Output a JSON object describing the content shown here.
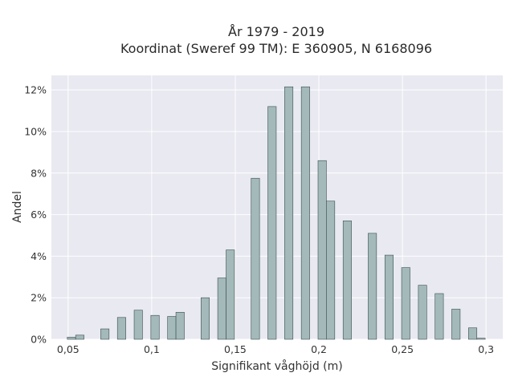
{
  "chart_data": {
    "type": "bar",
    "title_line1": "År 1979 - 2019",
    "title_line2": "Koordinat (Sweref 99 TM): E 360905, N 6168096",
    "xlabel": "Signifikant våghöjd (m)",
    "ylabel": "Andel",
    "xlim": [
      0.04,
      0.31
    ],
    "ylim": [
      0,
      12.7
    ],
    "x_ticks": [
      {
        "value": 0.05,
        "label": "0,05"
      },
      {
        "value": 0.1,
        "label": "0,1"
      },
      {
        "value": 0.15,
        "label": "0,15"
      },
      {
        "value": 0.2,
        "label": "0,2"
      },
      {
        "value": 0.25,
        "label": "0,25"
      },
      {
        "value": 0.3,
        "label": "0,3"
      }
    ],
    "y_ticks": [
      {
        "value": 0,
        "label": "0%"
      },
      {
        "value": 2,
        "label": "2%"
      },
      {
        "value": 4,
        "label": "4%"
      },
      {
        "value": 6,
        "label": "6%"
      },
      {
        "value": 8,
        "label": "8%"
      },
      {
        "value": 10,
        "label": "10%"
      },
      {
        "value": 12,
        "label": "12%"
      }
    ],
    "bar_width": 0.005,
    "bars": [
      {
        "x": 0.052,
        "y": 0.1
      },
      {
        "x": 0.057,
        "y": 0.2
      },
      {
        "x": 0.072,
        "y": 0.5
      },
      {
        "x": 0.082,
        "y": 1.05
      },
      {
        "x": 0.092,
        "y": 1.4
      },
      {
        "x": 0.102,
        "y": 1.15
      },
      {
        "x": 0.112,
        "y": 1.1
      },
      {
        "x": 0.117,
        "y": 1.3
      },
      {
        "x": 0.132,
        "y": 2.0
      },
      {
        "x": 0.142,
        "y": 2.95
      },
      {
        "x": 0.147,
        "y": 4.3
      },
      {
        "x": 0.162,
        "y": 7.75
      },
      {
        "x": 0.172,
        "y": 11.2
      },
      {
        "x": 0.182,
        "y": 12.15
      },
      {
        "x": 0.192,
        "y": 12.15
      },
      {
        "x": 0.202,
        "y": 8.6
      },
      {
        "x": 0.207,
        "y": 6.65
      },
      {
        "x": 0.217,
        "y": 5.7
      },
      {
        "x": 0.232,
        "y": 5.1
      },
      {
        "x": 0.242,
        "y": 4.05
      },
      {
        "x": 0.252,
        "y": 3.45
      },
      {
        "x": 0.262,
        "y": 2.6
      },
      {
        "x": 0.272,
        "y": 2.2
      },
      {
        "x": 0.282,
        "y": 1.45
      },
      {
        "x": 0.292,
        "y": 0.55
      },
      {
        "x": 0.297,
        "y": 0.05
      }
    ],
    "colors": {
      "plot_bg": "#e8e9f1",
      "grid": "#ffffff",
      "bar_fill": "#a3b9ba",
      "bar_stroke": "#3d4f4f"
    },
    "grid": true,
    "legend": "none"
  }
}
